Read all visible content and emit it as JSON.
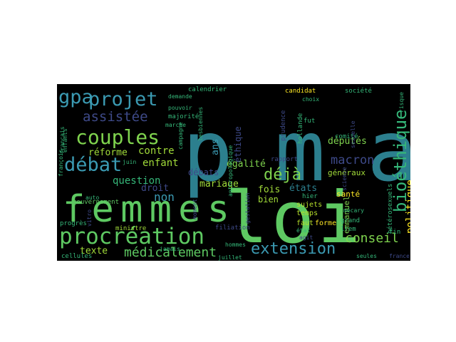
{
  "wordcloud": {
    "background": "#000000",
    "palette": [
      "#440154",
      "#3b528b",
      "#2c7f8e",
      "#21918c",
      "#35b779",
      "#5ec962",
      "#7fd34e",
      "#fde725"
    ],
    "words": [
      {
        "text": "pma",
        "color": "#2c7f8e"
      },
      {
        "text": "loi",
        "color": "#5ec962"
      },
      {
        "text": "femmes",
        "color": "#5ec962"
      },
      {
        "text": "procréation",
        "color": "#5ec962"
      },
      {
        "text": "couples",
        "color": "#7fd34e"
      },
      {
        "text": "débat",
        "color": "#3b9ab2"
      },
      {
        "text": "projet",
        "color": "#3b9ab2"
      },
      {
        "text": "gpa",
        "color": "#3b9ab2"
      },
      {
        "text": "bioéthique",
        "color": "#35b779"
      },
      {
        "text": "extension",
        "color": "#3b9ab2"
      },
      {
        "text": "médicalement",
        "color": "#5ec962"
      },
      {
        "text": "assistée",
        "color": "#3e4a89"
      },
      {
        "text": "déjà",
        "color": "#7fd34e"
      },
      {
        "text": "conseil",
        "color": "#7fd34e"
      },
      {
        "text": "macron",
        "color": "#3e4a89"
      },
      {
        "text": "politique",
        "color": "#fde725"
      },
      {
        "text": "enfant",
        "color": "#a0da39"
      },
      {
        "text": "réforme",
        "color": "#a0da39"
      },
      {
        "text": "contre",
        "color": "#a0da39"
      },
      {
        "text": "question",
        "color": "#35b779"
      },
      {
        "text": "non",
        "color": "#3b9ab2"
      },
      {
        "text": "droit",
        "color": "#3e4a89"
      },
      {
        "text": "mariage",
        "color": "#a0da39"
      },
      {
        "text": "fois",
        "color": "#a0da39"
      },
      {
        "text": "états",
        "color": "#2c7f8e"
      },
      {
        "text": "députés",
        "color": "#7fd34e"
      },
      {
        "text": "égalité",
        "color": "#7fd34e"
      },
      {
        "text": "éthique",
        "color": "#3e4a89"
      },
      {
        "text": "débats",
        "color": "#3e4a89"
      },
      {
        "text": "texte",
        "color": "#a0da39"
      },
      {
        "text": "ans",
        "color": "#3b9ab2"
      },
      {
        "text": "bien",
        "color": "#a0da39"
      },
      {
        "text": "emmanuel",
        "color": "#7fd34e"
      },
      {
        "text": "généraux",
        "color": "#a0da39"
      },
      {
        "text": "santé",
        "color": "#fde725"
      },
      {
        "text": "temps",
        "color": "#b5de2b"
      },
      {
        "text": "faut",
        "color": "#b5de2b"
      },
      {
        "text": "forme",
        "color": "#fde725"
      },
      {
        "text": "sujets",
        "color": "#b5de2b"
      },
      {
        "text": "hier",
        "color": "#35b779"
      },
      {
        "text": "grand",
        "color": "#35b779"
      },
      {
        "text": "lrem",
        "color": "#35b779"
      },
      {
        "text": "rapport",
        "color": "#3e4a89"
      },
      {
        "text": "gouvernement",
        "color": "#5ec962"
      },
      {
        "text": "ministre",
        "color": "#a0da39"
      },
      {
        "text": "filiation",
        "color": "#3e4a89"
      },
      {
        "text": "gestation",
        "color": "#3e4a89"
      },
      {
        "text": "progrès",
        "color": "#35b779"
      },
      {
        "text": "cellules",
        "color": "#35b779"
      },
      {
        "text": "hommes",
        "color": "#35b779"
      },
      {
        "text": "juillet",
        "color": "#35b779"
      },
      {
        "text": "seules",
        "color": "#35b779"
      },
      {
        "text": "fin",
        "color": "#35b779"
      },
      {
        "text": "calendrier",
        "color": "#35b779"
      },
      {
        "text": "comité",
        "color": "#35b779"
      },
      {
        "text": "anthropologique",
        "color": "#35b779"
      },
      {
        "text": "candidat",
        "color": "#fde725"
      },
      {
        "text": "choix",
        "color": "#35b779"
      },
      {
        "text": "société",
        "color": "#35b779"
      },
      {
        "text": "français",
        "color": "#35b779"
      },
      {
        "text": "majorité",
        "color": "#35b779"
      },
      {
        "text": "pouvoir",
        "color": "#35b779"
      },
      {
        "text": "demande",
        "color": "#35b779"
      },
      {
        "text": "marche",
        "color": "#35b779"
      },
      {
        "text": "juin",
        "color": "#35b779"
      },
      {
        "text": "jour",
        "color": "#35b779"
      },
      {
        "text": "campagne",
        "color": "#35b779"
      },
      {
        "text": "prudence",
        "color": "#3e4a89"
      },
      {
        "text": "hollande",
        "color": "#35b779"
      },
      {
        "text": "mécary",
        "color": "#35b779"
      },
      {
        "text": "hétérosexuels",
        "color": "#35b779"
      },
      {
        "text": "vitro",
        "color": "#3e4a89"
      },
      {
        "text": "état",
        "color": "#35b779"
      },
      {
        "text": "france",
        "color": "#3e4a89"
      },
      {
        "text": "jamais",
        "color": "#35b779"
      },
      {
        "text": "mesure",
        "color": "#3e4a89"
      },
      {
        "text": "lesbiennes",
        "color": "#35b779"
      },
      {
        "text": "françois",
        "color": "#35b779"
      },
      {
        "text": "enfants",
        "color": "#35b779"
      },
      {
        "text": "risque",
        "color": "#35b779"
      },
      {
        "text": "fut",
        "color": "#35b779"
      },
      {
        "text": "agit",
        "color": "#3e4a89"
      },
      {
        "text": "moment",
        "color": "#3e4a89"
      },
      {
        "text": "sexuelle",
        "color": "#3e4a89"
      },
      {
        "text": "science",
        "color": "#3e4a89"
      },
      {
        "text": "auto",
        "color": "#35b779"
      }
    ]
  }
}
